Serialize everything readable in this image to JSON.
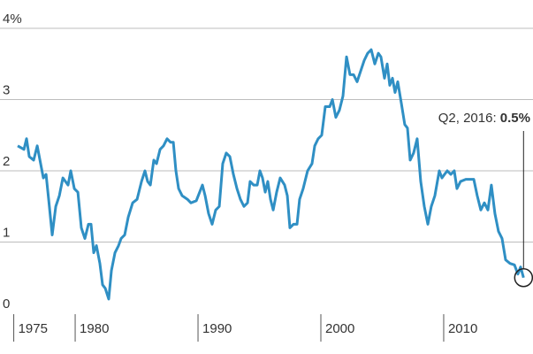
{
  "chart_data": {
    "type": "line",
    "x": [
      1975.32,
      1975.83,
      1976.04,
      1976.26,
      1976.62,
      1976.91,
      1977.41,
      1977.63,
      1977.84,
      1978.13,
      1978.42,
      1978.71,
      1979.0,
      1979.42,
      1979.64,
      1979.93,
      1980.22,
      1980.5,
      1980.79,
      1981.08,
      1981.29,
      1981.51,
      1981.73,
      1982.01,
      1982.23,
      1982.45,
      1982.73,
      1982.95,
      1983.24,
      1983.53,
      1983.74,
      1984.03,
      1984.32,
      1984.68,
      1985.04,
      1985.4,
      1985.68,
      1985.9,
      1986.12,
      1986.4,
      1986.62,
      1986.91,
      1987.19,
      1987.48,
      1987.77,
      1987.99,
      1988.2,
      1988.42,
      1988.71,
      1989.14,
      1989.42,
      1989.86,
      1990.36,
      1990.58,
      1990.86,
      1991.15,
      1991.44,
      1991.73,
      1992.01,
      1992.3,
      1992.59,
      1992.88,
      1993.17,
      1993.45,
      1993.74,
      1994.03,
      1994.24,
      1994.53,
      1994.82,
      1995.04,
      1995.25,
      1995.47,
      1995.68,
      1995.9,
      1996.12,
      1996.4,
      1996.69,
      1997.05,
      1997.27,
      1997.48,
      1997.77,
      1998.06,
      1998.27,
      1998.56,
      1998.92,
      1999.28,
      1999.5,
      1999.78,
      2000.07,
      2000.36,
      2000.72,
      2000.94,
      2001.22,
      2001.51,
      2001.8,
      2002.09,
      2002.37,
      2002.66,
      2002.95,
      2003.24,
      2003.53,
      2003.81,
      2004.1,
      2004.39,
      2004.68,
      2004.89,
      2005.18,
      2005.4,
      2005.61,
      2005.83,
      2006.04,
      2006.26,
      2006.55,
      2006.83,
      2007.05,
      2007.27,
      2007.55,
      2007.84,
      2008.13,
      2008.42,
      2008.71,
      2008.99,
      2009.28,
      2009.64,
      2009.86,
      2010.07,
      2010.29,
      2010.58,
      2010.86,
      2011.08,
      2011.37,
      2011.8,
      2012.45,
      2012.73,
      2013.02,
      2013.31,
      2013.6,
      2013.88,
      2014.17,
      2014.46,
      2014.75,
      2015.04,
      2015.4,
      2015.76,
      2016.04,
      2016.26,
      2016.5
    ],
    "series": [
      {
        "color": "#2f8fc4",
        "values": [
          2.35,
          2.3,
          2.45,
          2.2,
          2.15,
          2.35,
          1.9,
          1.95,
          1.6,
          1.1,
          1.5,
          1.65,
          1.9,
          1.8,
          2.0,
          1.75,
          1.7,
          1.2,
          1.05,
          1.25,
          1.25,
          0.85,
          0.95,
          0.7,
          0.4,
          0.35,
          0.2,
          0.6,
          0.85,
          0.95,
          1.05,
          1.1,
          1.35,
          1.55,
          1.6,
          1.85,
          2.0,
          1.85,
          1.8,
          2.15,
          2.1,
          2.3,
          2.35,
          2.45,
          2.4,
          2.4,
          2.0,
          1.75,
          1.65,
          1.6,
          1.55,
          1.58,
          1.8,
          1.65,
          1.4,
          1.25,
          1.45,
          1.5,
          2.1,
          2.25,
          2.2,
          1.95,
          1.75,
          1.6,
          1.5,
          1.55,
          1.85,
          1.8,
          1.8,
          2.0,
          1.9,
          1.7,
          1.85,
          1.6,
          1.45,
          1.7,
          1.9,
          1.8,
          1.65,
          1.2,
          1.25,
          1.25,
          1.6,
          1.75,
          2.0,
          2.1,
          2.35,
          2.45,
          2.5,
          2.9,
          2.9,
          3.0,
          2.75,
          2.85,
          3.05,
          3.6,
          3.35,
          3.35,
          3.25,
          3.4,
          3.55,
          3.65,
          3.7,
          3.5,
          3.65,
          3.6,
          3.3,
          3.5,
          3.2,
          3.3,
          3.1,
          3.25,
          2.95,
          2.65,
          2.6,
          2.15,
          2.25,
          2.45,
          1.85,
          1.5,
          1.25,
          1.5,
          1.65,
          2.0,
          1.9,
          1.95,
          2.0,
          1.95,
          2.0,
          1.75,
          1.85,
          1.88,
          1.88,
          1.65,
          1.45,
          1.55,
          1.45,
          1.8,
          1.4,
          1.15,
          1.05,
          0.75,
          0.7,
          0.68,
          0.55,
          0.65,
          0.5
        ]
      }
    ],
    "xlim": [
      1973.88,
      2017.27
    ],
    "xticks": [
      1975,
      1980,
      1990,
      2000,
      2010
    ],
    "ylim": [
      0,
      4
    ],
    "yticks": [
      0,
      1,
      2,
      3,
      {
        "value": 4,
        "label": "4%"
      }
    ],
    "grid": true,
    "annotation": {
      "label": "Q2, 2016:",
      "value_label": "0.5%"
    }
  }
}
